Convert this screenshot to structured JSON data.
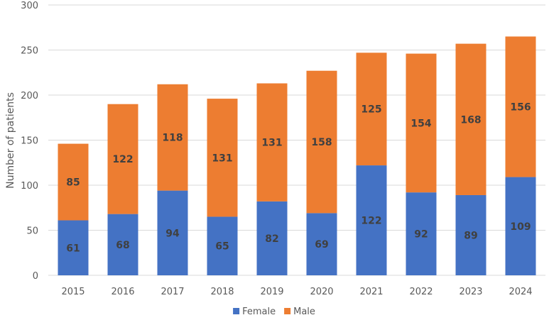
{
  "chart_data": {
    "type": "bar",
    "stacked": true,
    "title": "",
    "xlabel": "",
    "ylabel": "Number of patients",
    "ylim": [
      0,
      300
    ],
    "yticks": [
      0,
      50,
      100,
      150,
      200,
      250,
      300
    ],
    "grid": true,
    "legend_position": "bottom",
    "categories": [
      "2015",
      "2016",
      "2017",
      "2018",
      "2019",
      "2020",
      "2021",
      "2022",
      "2023",
      "2024"
    ],
    "series": [
      {
        "name": "Female",
        "color": "#4472C4",
        "values": [
          61,
          68,
          94,
          65,
          82,
          69,
          122,
          92,
          89,
          109
        ]
      },
      {
        "name": "Male",
        "color": "#ED7D31",
        "values": [
          85,
          122,
          118,
          131,
          131,
          158,
          125,
          154,
          168,
          156
        ]
      }
    ]
  }
}
